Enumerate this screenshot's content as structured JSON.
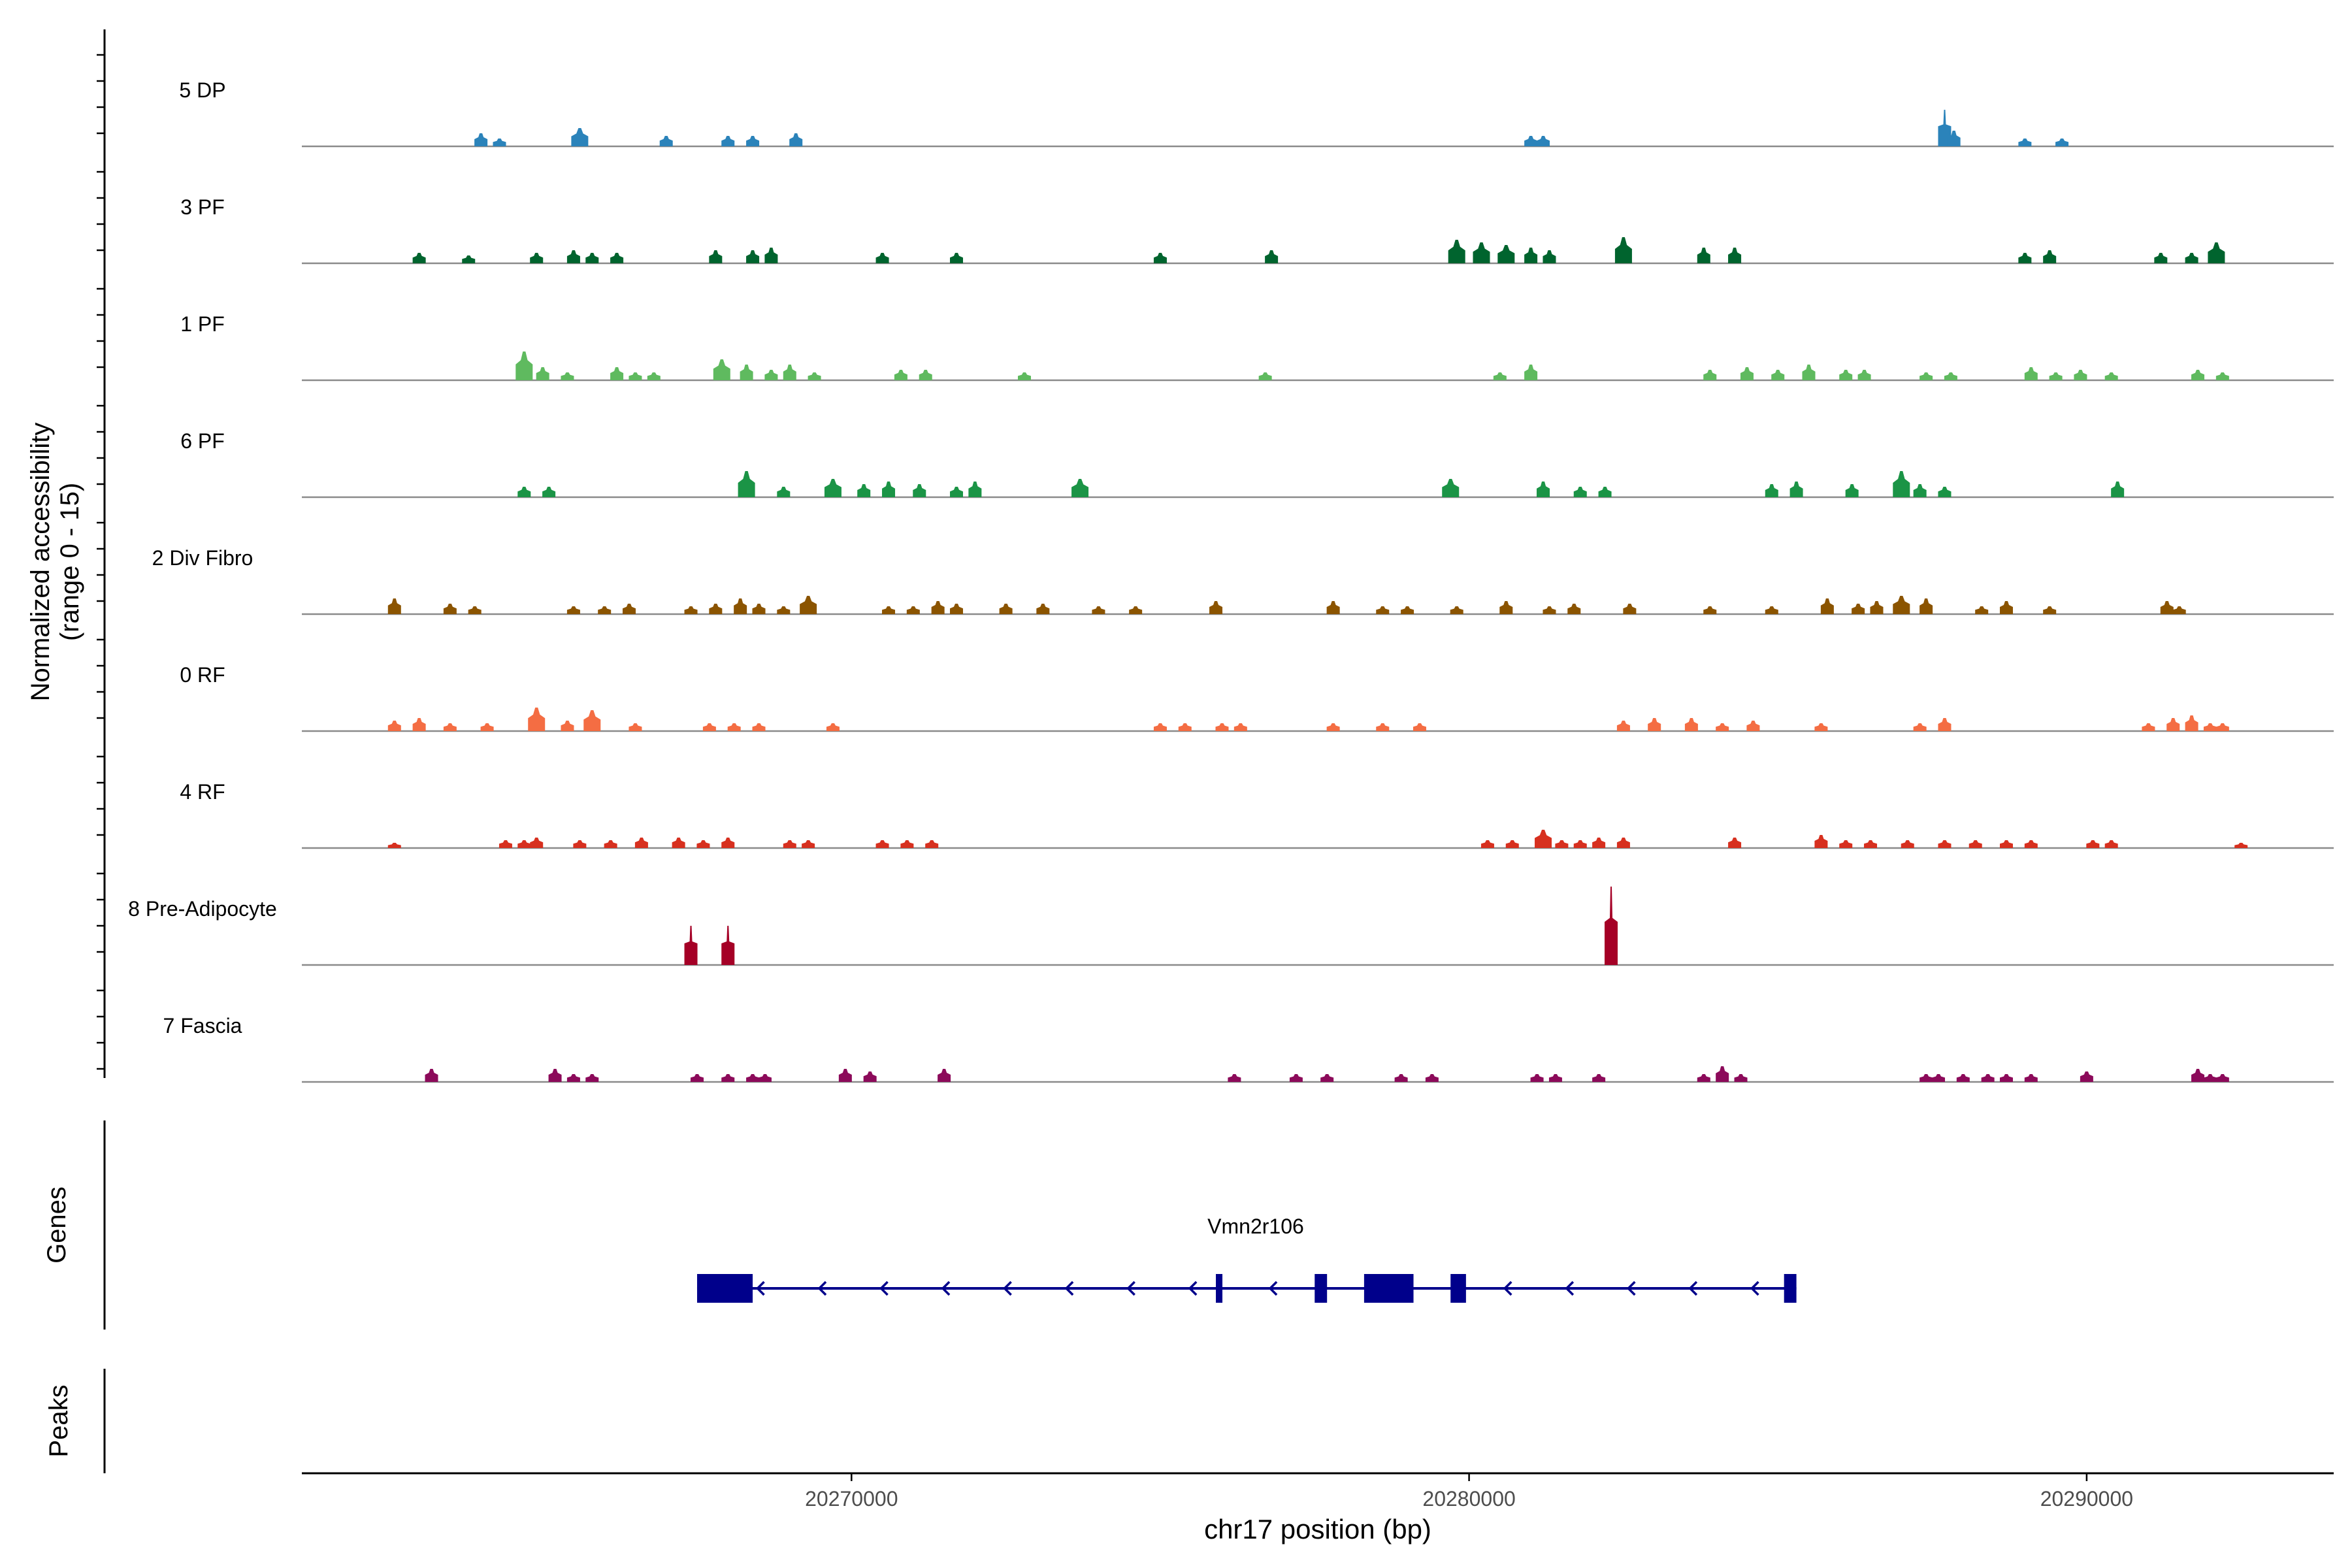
{
  "chart_data": {
    "type": "coverage-track",
    "xlabel": "chr17 position (bp)",
    "ylabel_line1": "Normalized accessibility",
    "ylabel_line2": "(range 0 - 15)",
    "ylim": [
      0,
      15
    ],
    "xlim": [
      20261100,
      20294000
    ],
    "x_ticks": [
      20270000,
      20280000,
      20290000
    ],
    "x_tick_labels": [
      "20270000",
      "20280000",
      "20290000"
    ],
    "genes_label": "Genes",
    "peaks_label": "Peaks",
    "tracks": [
      {
        "name": "5 DP",
        "color": "#2b83ba",
        "peaks": [
          [
            20264000,
            2.5
          ],
          [
            20264300,
            1.5
          ],
          [
            20265600,
            3.5
          ],
          [
            20267000,
            2
          ],
          [
            20268000,
            2
          ],
          [
            20268400,
            2
          ],
          [
            20269100,
            2.5
          ],
          [
            20281000,
            2
          ],
          [
            20281200,
            2
          ],
          [
            20287700,
            7
          ],
          [
            20287850,
            3
          ],
          [
            20289000,
            1.5
          ],
          [
            20289600,
            1.5
          ]
        ]
      },
      {
        "name": "3 PF",
        "color": "#00642e",
        "peaks": [
          [
            20263000,
            2
          ],
          [
            20263800,
            1.5
          ],
          [
            20264900,
            2
          ],
          [
            20265500,
            2.5
          ],
          [
            20265800,
            2
          ],
          [
            20266200,
            2
          ],
          [
            20267800,
            2.5
          ],
          [
            20268400,
            2.5
          ],
          [
            20268700,
            3
          ],
          [
            20270500,
            2
          ],
          [
            20271700,
            2
          ],
          [
            20275000,
            2
          ],
          [
            20276800,
            2.5
          ],
          [
            20279800,
            4.5
          ],
          [
            20280200,
            4
          ],
          [
            20280600,
            3.5
          ],
          [
            20281000,
            3
          ],
          [
            20281300,
            2.5
          ],
          [
            20282500,
            5
          ],
          [
            20283800,
            3
          ],
          [
            20284300,
            3
          ],
          [
            20289000,
            2
          ],
          [
            20289400,
            2.5
          ],
          [
            20291200,
            2
          ],
          [
            20291700,
            2
          ],
          [
            20292100,
            4
          ]
        ]
      },
      {
        "name": "1 PF",
        "color": "#5fba5f",
        "peaks": [
          [
            20264700,
            5.5
          ],
          [
            20265000,
            2.5
          ],
          [
            20265400,
            1.5
          ],
          [
            20266200,
            2.5
          ],
          [
            20266500,
            1.5
          ],
          [
            20266800,
            1.5
          ],
          [
            20267900,
            4
          ],
          [
            20268300,
            3
          ],
          [
            20268700,
            2
          ],
          [
            20269000,
            3
          ],
          [
            20269400,
            1.5
          ],
          [
            20270800,
            2
          ],
          [
            20271200,
            2
          ],
          [
            20272800,
            1.5
          ],
          [
            20276700,
            1.5
          ],
          [
            20280500,
            1.5
          ],
          [
            20281000,
            3
          ],
          [
            20283900,
            2
          ],
          [
            20284500,
            2.5
          ],
          [
            20285000,
            2
          ],
          [
            20285500,
            3
          ],
          [
            20286100,
            2
          ],
          [
            20286400,
            2
          ],
          [
            20287400,
            1.5
          ],
          [
            20287800,
            1.5
          ],
          [
            20289100,
            2.5
          ],
          [
            20289500,
            1.5
          ],
          [
            20289900,
            2
          ],
          [
            20290400,
            1.5
          ],
          [
            20291800,
            2
          ],
          [
            20292200,
            1.5
          ]
        ]
      },
      {
        "name": "6 PF",
        "color": "#1b9446",
        "peaks": [
          [
            20264700,
            2
          ],
          [
            20265100,
            2
          ],
          [
            20268300,
            5
          ],
          [
            20268900,
            2
          ],
          [
            20269700,
            3.5
          ],
          [
            20270200,
            2.5
          ],
          [
            20270600,
            3
          ],
          [
            20271100,
            2.5
          ],
          [
            20271700,
            2
          ],
          [
            20272000,
            3
          ],
          [
            20273700,
            3.5
          ],
          [
            20279700,
            3.5
          ],
          [
            20281200,
            3
          ],
          [
            20281800,
            2
          ],
          [
            20282200,
            2
          ],
          [
            20284900,
            2.5
          ],
          [
            20285300,
            3
          ],
          [
            20286200,
            2.5
          ],
          [
            20287000,
            5
          ],
          [
            20287300,
            2.5
          ],
          [
            20287700,
            2
          ],
          [
            20290500,
            3
          ]
        ]
      },
      {
        "name": "2 Div Fibro",
        "color": "#8b5400",
        "peaks": [
          [
            20262600,
            3
          ],
          [
            20263500,
            2
          ],
          [
            20263900,
            1.5
          ],
          [
            20265500,
            1.5
          ],
          [
            20266000,
            1.5
          ],
          [
            20266400,
            2
          ],
          [
            20267400,
            1.5
          ],
          [
            20267800,
            2
          ],
          [
            20268200,
            3
          ],
          [
            20268500,
            2
          ],
          [
            20268900,
            1.5
          ],
          [
            20269300,
            3.5
          ],
          [
            20270600,
            1.5
          ],
          [
            20271000,
            1.5
          ],
          [
            20271400,
            2.5
          ],
          [
            20271700,
            2
          ],
          [
            20272500,
            2
          ],
          [
            20273100,
            2
          ],
          [
            20274000,
            1.5
          ],
          [
            20274600,
            1.5
          ],
          [
            20275900,
            2.5
          ],
          [
            20277800,
            2.5
          ],
          [
            20278600,
            1.5
          ],
          [
            20279000,
            1.5
          ],
          [
            20279800,
            1.5
          ],
          [
            20280600,
            2.5
          ],
          [
            20281300,
            1.5
          ],
          [
            20281700,
            2
          ],
          [
            20282600,
            2
          ],
          [
            20283900,
            1.5
          ],
          [
            20284900,
            1.5
          ],
          [
            20285800,
            3
          ],
          [
            20286300,
            2
          ],
          [
            20286600,
            2.5
          ],
          [
            20287000,
            3.5
          ],
          [
            20287400,
            3
          ],
          [
            20288300,
            1.5
          ],
          [
            20288700,
            2.5
          ],
          [
            20289400,
            1.5
          ],
          [
            20291300,
            2.5
          ],
          [
            20291500,
            1.5
          ]
        ]
      },
      {
        "name": "0 RF",
        "color": "#f46d43",
        "peaks": [
          [
            20262600,
            2
          ],
          [
            20263000,
            2.5
          ],
          [
            20263500,
            1.5
          ],
          [
            20264100,
            1.5
          ],
          [
            20264900,
            4.5
          ],
          [
            20265400,
            2
          ],
          [
            20265800,
            4
          ],
          [
            20266500,
            1.5
          ],
          [
            20267700,
            1.5
          ],
          [
            20268100,
            1.5
          ],
          [
            20268500,
            1.5
          ],
          [
            20269700,
            1.5
          ],
          [
            20275000,
            1.5
          ],
          [
            20275400,
            1.5
          ],
          [
            20276000,
            1.5
          ],
          [
            20276300,
            1.5
          ],
          [
            20277800,
            1.5
          ],
          [
            20278600,
            1.5
          ],
          [
            20279200,
            1.5
          ],
          [
            20282500,
            2
          ],
          [
            20283000,
            2.5
          ],
          [
            20283600,
            2.5
          ],
          [
            20284100,
            1.5
          ],
          [
            20284600,
            2
          ],
          [
            20285700,
            1.5
          ],
          [
            20287300,
            1.5
          ],
          [
            20287700,
            2.5
          ],
          [
            20291000,
            1.5
          ],
          [
            20291400,
            2.5
          ],
          [
            20291700,
            3
          ],
          [
            20292000,
            1.5
          ],
          [
            20292200,
            1.5
          ]
        ]
      },
      {
        "name": "4 RF",
        "color": "#d7301f",
        "peaks": [
          [
            20262600,
            1
          ],
          [
            20264400,
            1.5
          ],
          [
            20264700,
            1.5
          ],
          [
            20264900,
            2
          ],
          [
            20265600,
            1.5
          ],
          [
            20266100,
            1.5
          ],
          [
            20266600,
            2
          ],
          [
            20267200,
            2
          ],
          [
            20267600,
            1.5
          ],
          [
            20268000,
            2
          ],
          [
            20269000,
            1.5
          ],
          [
            20269300,
            1.5
          ],
          [
            20270500,
            1.5
          ],
          [
            20270900,
            1.5
          ],
          [
            20271300,
            1.5
          ],
          [
            20280300,
            1.5
          ],
          [
            20280700,
            1.5
          ],
          [
            20281200,
            3.5
          ],
          [
            20281500,
            1.5
          ],
          [
            20281800,
            1.5
          ],
          [
            20282100,
            2
          ],
          [
            20282500,
            2
          ],
          [
            20284300,
            2
          ],
          [
            20285700,
            2.5
          ],
          [
            20286100,
            1.5
          ],
          [
            20286500,
            1.5
          ],
          [
            20287100,
            1.5
          ],
          [
            20287700,
            1.5
          ],
          [
            20288200,
            1.5
          ],
          [
            20288700,
            1.5
          ],
          [
            20289100,
            1.5
          ],
          [
            20290100,
            1.5
          ],
          [
            20290400,
            1.5
          ],
          [
            20292500,
            1
          ]
        ]
      },
      {
        "name": "8 Pre-Adipocyte",
        "color": "#a50026",
        "peaks": [
          [
            20267400,
            7.5
          ],
          [
            20268000,
            7.5
          ],
          [
            20282300,
            15
          ]
        ]
      },
      {
        "name": "7 Fascia",
        "color": "#8c0a5a",
        "peaks": [
          [
            20263200,
            2.5
          ],
          [
            20265200,
            2.5
          ],
          [
            20265500,
            1.5
          ],
          [
            20265800,
            1.5
          ],
          [
            20267500,
            1.5
          ],
          [
            20268000,
            1.5
          ],
          [
            20268400,
            1.5
          ],
          [
            20268600,
            1.5
          ],
          [
            20269900,
            2.5
          ],
          [
            20270300,
            2
          ],
          [
            20271500,
            2.5
          ],
          [
            20276200,
            1.5
          ],
          [
            20277200,
            1.5
          ],
          [
            20277700,
            1.5
          ],
          [
            20278900,
            1.5
          ],
          [
            20279400,
            1.5
          ],
          [
            20281100,
            1.5
          ],
          [
            20281400,
            1.5
          ],
          [
            20282100,
            1.5
          ],
          [
            20283800,
            1.5
          ],
          [
            20284100,
            3
          ],
          [
            20284400,
            1.5
          ],
          [
            20287400,
            1.5
          ],
          [
            20287600,
            1.5
          ],
          [
            20288000,
            1.5
          ],
          [
            20288400,
            1.5
          ],
          [
            20288700,
            1.5
          ],
          [
            20289100,
            1.5
          ],
          [
            20290000,
            2
          ],
          [
            20291800,
            2.5
          ],
          [
            20292000,
            1.5
          ],
          [
            20292200,
            1.5
          ]
        ]
      }
    ],
    "gene": {
      "name": "Vmn2r106",
      "start": 20267500,
      "end": 20285300,
      "strand": "-",
      "color": "#00008b",
      "exons": [
        [
          20267500,
          20268400
        ],
        [
          20275900,
          20276000
        ],
        [
          20277500,
          20277700
        ],
        [
          20278300,
          20279100
        ],
        [
          20279700,
          20279950
        ],
        [
          20285100,
          20285300
        ]
      ],
      "arrows": [
        20268500,
        20269500,
        20270500,
        20271500,
        20272500,
        20273500,
        20274500,
        20275500,
        20276800,
        20280600,
        20281600,
        20282600,
        20283600,
        20284600
      ]
    }
  }
}
